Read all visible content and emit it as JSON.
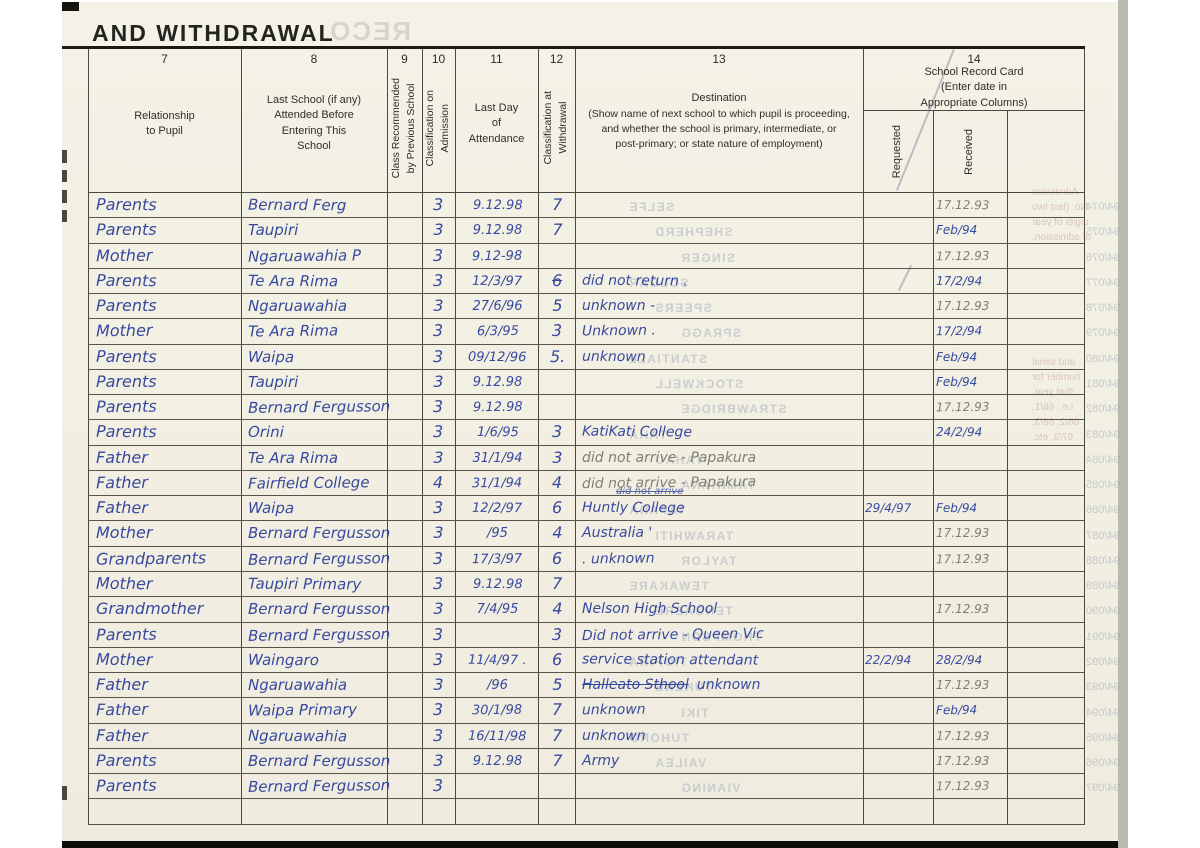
{
  "page": {
    "title": "AND WITHDRAWAL"
  },
  "table": {
    "columns": [
      {
        "num": "7",
        "label": "Relationship\nto Pupil"
      },
      {
        "num": "8",
        "label": "Last School (if any)\nAttended Before\nEntering This\nSchool"
      },
      {
        "num": "9",
        "label": "Class Recommended\nby Previous School"
      },
      {
        "num": "10",
        "label": "Classification on\nAdmission"
      },
      {
        "num": "11",
        "label": "Last Day\nof\nAttendance"
      },
      {
        "num": "12",
        "label": "Classification at\nWithdrawal"
      },
      {
        "num": "13",
        "label": "Destination",
        "sublabel": "(Show name of next school to which pupil is proceeding,\nand whether the school is primary, intermediate, or\npost-primary; or state nature of employment)"
      },
      {
        "num": "14",
        "label": "School Record Card\n(Enter date in\nAppropriate Columns)",
        "sub": [
          "Requested",
          "Received"
        ]
      }
    ],
    "rows": [
      {
        "relationship": "Parents",
        "last_school": "Bernard Ferg",
        "admission": "3",
        "last_day": "9.12.98",
        "withdrawal": "7",
        "received": "17.12.93",
        "received_pencil": true
      },
      {
        "relationship": "Parents",
        "last_school": "Taupiri",
        "admission": "3",
        "last_day": "9.12.98",
        "withdrawal": "7",
        "received": "Feb/94"
      },
      {
        "relationship": "Mother",
        "last_school": "Ngaruawahia P",
        "admission": "3",
        "last_day": "9.12-98",
        "received": "17.12.93",
        "received_pencil": true
      },
      {
        "relationship": "Parents",
        "last_school": "Te Ara Rima",
        "admission": "3",
        "last_day": "12/3/97",
        "withdrawal": "6",
        "withdrawal_struck": true,
        "destination": "did not return .",
        "received": "17/2/94"
      },
      {
        "relationship": "Parents",
        "last_school": "Ngaruawahia",
        "admission": "3",
        "last_day": "27/6/96",
        "withdrawal": "5",
        "destination": "unknown -",
        "received": "17.12.93",
        "received_pencil": true
      },
      {
        "relationship": "Mother",
        "last_school": "Te Ara Rima",
        "admission": "3",
        "last_day": "6/3/95",
        "withdrawal": "3",
        "destination": "Unknown .",
        "received": "17/2/94"
      },
      {
        "relationship": "Parents",
        "last_school": "Waipa",
        "admission": "3",
        "last_day": "09/12/96",
        "withdrawal": "5.",
        "destination": "unknown",
        "received": "Feb/94"
      },
      {
        "relationship": "Parents",
        "last_school": "Taupiri",
        "admission": "3",
        "last_day": "9.12.98",
        "received": "Feb/94"
      },
      {
        "relationship": "Parents",
        "last_school": "Bernard Fergusson",
        "admission": "3",
        "last_day": "9.12.98",
        "received": "17.12.93",
        "received_pencil": true
      },
      {
        "relationship": "Parents",
        "last_school": "Orini",
        "admission": "3",
        "last_day": "1/6/95",
        "withdrawal": "3",
        "destination": "KatiKati College",
        "received": "24/2/94"
      },
      {
        "relationship": "Father",
        "last_school": "Te Ara Rima",
        "admission": "3",
        "last_day": "31/1/94",
        "withdrawal": "3",
        "destination": "did not arrive - Papakura",
        "destination_pencil": true
      },
      {
        "relationship": "Father",
        "last_school": "Fairfield College",
        "admission": "4",
        "last_day": "31/1/94",
        "withdrawal": "4",
        "destination": "did not arrive - Papakura",
        "destination_pencil": true
      },
      {
        "relationship": "Father",
        "last_school": "Waipa",
        "admission": "3",
        "last_day": "12/2/97",
        "withdrawal": "6",
        "destination": "Huntly College",
        "destination_above": "did not arrive",
        "requested": "29/4/97",
        "received": "Feb/94"
      },
      {
        "relationship": "Mother",
        "last_school": "Bernard Fergusson",
        "admission": "3",
        "last_day": "/95",
        "withdrawal": "4",
        "destination": "Australia '",
        "received": "17.12.93",
        "received_pencil": true
      },
      {
        "relationship": "Grandparents",
        "last_school": "Bernard Fergusson",
        "admission": "3",
        "last_day": "17/3/97",
        "withdrawal": "6",
        "destination": ". unknown",
        "received": "17.12.93",
        "received_pencil": true
      },
      {
        "relationship": "Mother",
        "last_school": "Taupiri Primary",
        "admission": "3",
        "last_day": "9.12.98",
        "withdrawal": "7"
      },
      {
        "relationship": "Grandmother",
        "last_school": "Bernard Fergusson",
        "admission": "3",
        "last_day": "7/4/95",
        "withdrawal": "4",
        "destination": "Nelson High School",
        "received": "17.12.93",
        "received_pencil": true
      },
      {
        "relationship": "Parents",
        "last_school": "Bernard Fergusson",
        "admission": "3",
        "withdrawal": "3",
        "destination": "Did not arrive - Queen Vic"
      },
      {
        "relationship": "Mother",
        "last_school": "Waingaro",
        "admission": "3",
        "last_day": "11/4/97 .",
        "withdrawal": "6",
        "destination": "service station attendant",
        "requested": "22/2/94",
        "received": "28/2/94"
      },
      {
        "relationship": "Father",
        "last_school": "Ngaruawahia",
        "admission": "3",
        "last_day": "/96",
        "withdrawal": "5",
        "destination_struck": "Halleato Sthool",
        "destination": "unknown",
        "received": "17.12.93",
        "received_pencil": true
      },
      {
        "relationship": "Father",
        "last_school": "Waipa Primary",
        "admission": "3",
        "last_day": "30/1/98",
        "withdrawal": "7",
        "destination": "unknown",
        "received": "Feb/94"
      },
      {
        "relationship": "Father",
        "last_school": "Ngaruawahia",
        "admission": "3",
        "last_day": "16/11/98",
        "withdrawal": "7",
        "destination": "unknown",
        "received": "17.12.93",
        "received_pencil": true
      },
      {
        "relationship": "Parents",
        "last_school": "Bernard Fergusson",
        "admission": "3",
        "last_day": "9.12.98",
        "withdrawal": "7",
        "destination": "Army",
        "received": "17.12.93",
        "received_pencil": true
      },
      {
        "relationship": "Parents",
        "last_school": "Bernard Fergusson",
        "admission": "3",
        "received": "17.12.93",
        "received_pencil": true
      },
      {}
    ]
  },
  "artifacts": {
    "mirrored_title": "RECO",
    "bleed_names": [
      "SELFE",
      "SHEPHERD",
      "SINGER",
      "SOLGAR",
      "SPEERS",
      "SPRAGG",
      "STANTIALL",
      "STOCKWELL",
      "STRAWBRIDGE",
      "TAHA",
      "TAHAU",
      "TAMIHANA",
      "TAPARA",
      "TARAWHITI",
      "TAYLOR",
      "TEWAKARE",
      "TENGAERE",
      "THOMPSON",
      "TIOPIRA",
      "TUHEKE",
      "TIKI",
      "TUHORO",
      "VAILEA",
      "VIANING"
    ],
    "margin_numbers": [
      "94/074",
      "94/075",
      "94/076",
      "94/077",
      "94/078",
      "94/079",
      "94/080",
      "94/081",
      "94/082",
      "94/083",
      "94/084",
      "94/085",
      "94/086",
      "94/087",
      "94/088",
      "94/089",
      "94/090",
      "94/091",
      "94/092",
      "94/093",
      "94/094",
      "94/095",
      "94/096",
      "94/097"
    ],
    "margin_paragraphs": [
      "Admission\nNo. (last two\ndigits of year\nof admission,",
      "and serial\nnumber for\nthat year,\ni.e., 68/1,\n68/2, 68/3,\n67/3, etc."
    ]
  }
}
